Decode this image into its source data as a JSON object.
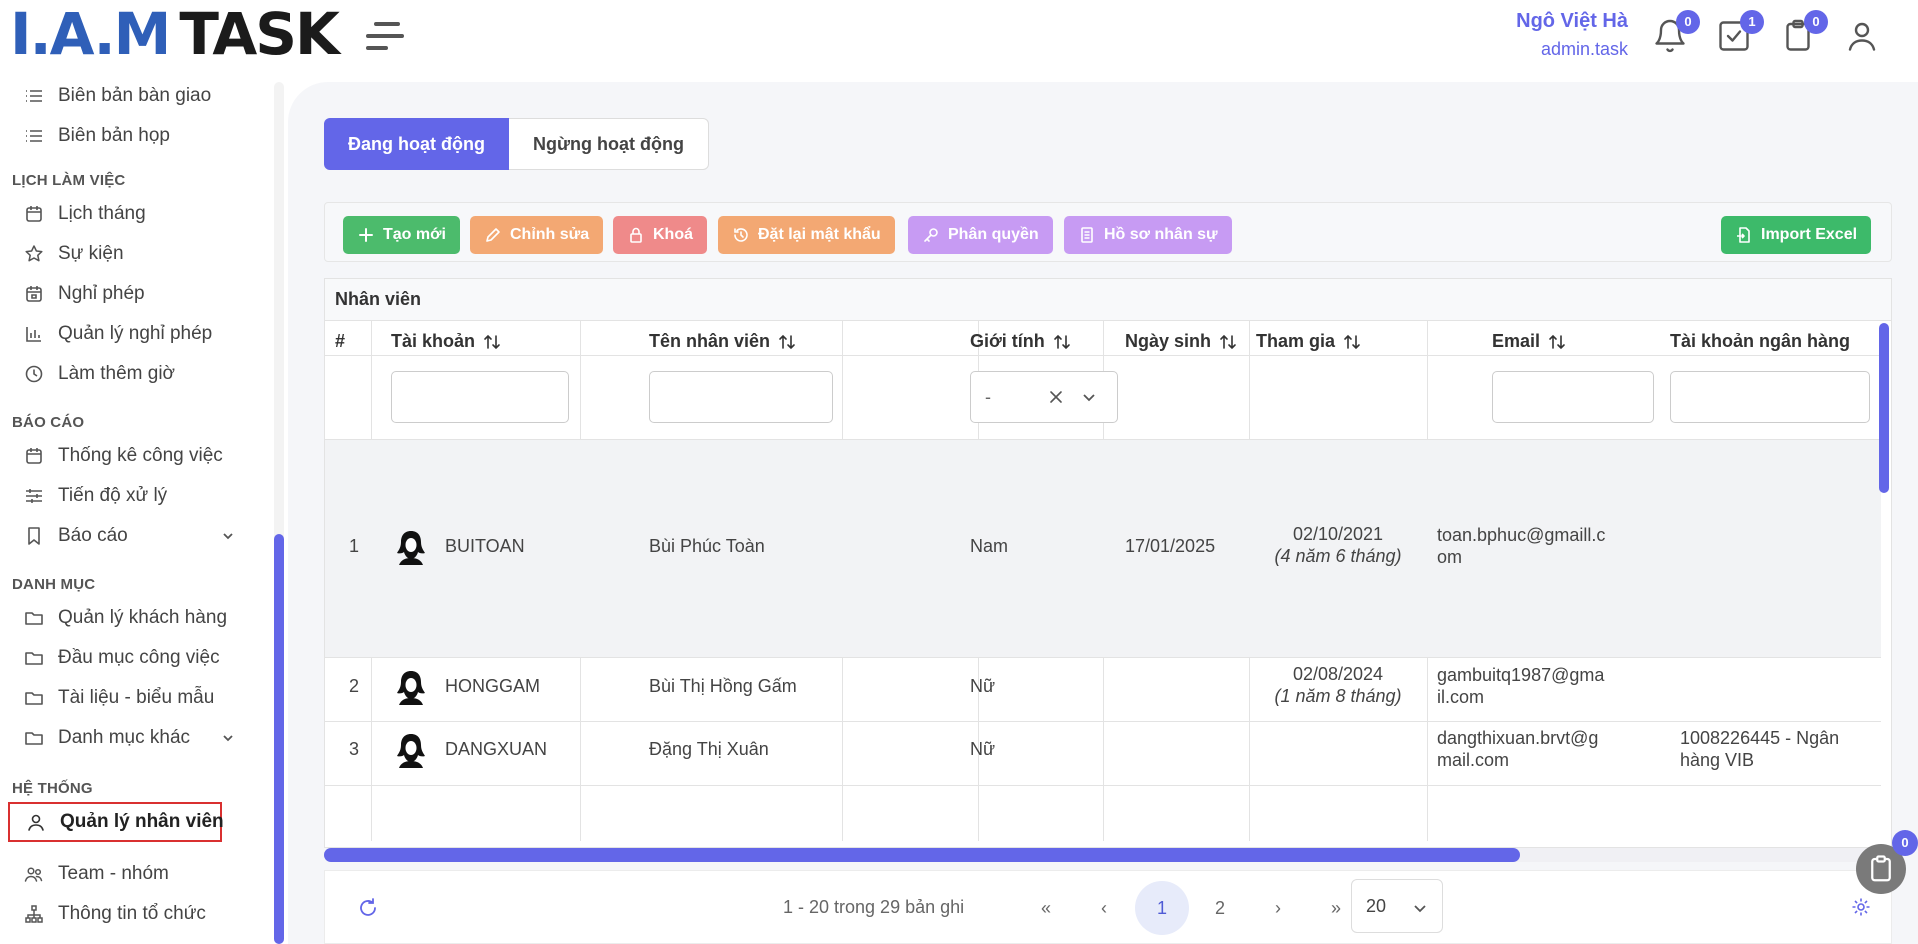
{
  "brand": {
    "logo_part1": "I.A.M",
    "logo_part2": "TASK"
  },
  "header": {
    "user_name": "Ngô Việt Hà",
    "user_role": "admin.task",
    "badges": {
      "notifications": "0",
      "tasks": "1",
      "clipboard": "0"
    }
  },
  "sidebar": {
    "top_items": [
      "Biên bản bàn giao",
      "Biên bản họp"
    ],
    "sections": [
      {
        "title": "LỊCH LÀM VIỆC",
        "items": [
          "Lịch tháng",
          "Sự kiện",
          "Nghỉ phép",
          "Quản lý nghỉ phép",
          "Làm thêm giờ"
        ]
      },
      {
        "title": "BÁO CÁO",
        "items": [
          "Thống kê công việc",
          "Tiến độ xử lý",
          "Báo cáo"
        ]
      },
      {
        "title": "DANH MỤC",
        "items": [
          "Quản lý khách hàng",
          "Đầu mục công việc",
          "Tài liệu - biểu mẫu",
          "Danh mục khác"
        ]
      },
      {
        "title": "HỆ THỐNG",
        "items": [
          "Quản lý nhân viên",
          "Team - nhóm",
          "Thông tin tổ chức"
        ]
      }
    ]
  },
  "tabs": {
    "active": "Đang hoạt động",
    "inactive": "Ngừng hoạt động"
  },
  "toolbar": {
    "create": "Tạo mới",
    "edit": "Chỉnh sửa",
    "lock": "Khoá",
    "reset_password": "Đặt lại mật khẩu",
    "permissions": "Phân quyền",
    "hr_profile": "Hồ sơ nhân sự",
    "import_excel": "Import Excel"
  },
  "colors": {
    "primary": "#6366e8",
    "create": "#4cbb6c",
    "edit": "#f3a873",
    "lock": "#ef8a8a",
    "reset": "#f3a873",
    "permissions": "#c79bf3",
    "hr_profile": "#c79bf3",
    "import": "#3dba6a"
  },
  "table": {
    "caption": "Nhân viên",
    "columns": [
      "#",
      "Tài khoản",
      "Tên nhân viên",
      "Giới tính",
      "Ngày sinh",
      "Tham gia",
      "Email",
      "Tài khoản ngân hàng"
    ],
    "gender_filter_value": "-",
    "rows": [
      {
        "no": "1",
        "account": "BUITOAN",
        "name": "Bùi Phúc Toàn",
        "gender": "Nam",
        "dob": "17/01/2025",
        "joined": "02/10/2021",
        "joined_note": "(4 năm 6 tháng)",
        "email": "toan.bphuc@gmaill.com",
        "bank": ""
      },
      {
        "no": "2",
        "account": "HONGGAM",
        "name": "Bùi Thị Hồng Gấm",
        "gender": "Nữ",
        "dob": "",
        "joined": "02/08/2024",
        "joined_note": "(1 năm 8 tháng)",
        "email": "gambuitq1987@gmail.com",
        "bank": ""
      },
      {
        "no": "3",
        "account": "DANGXUAN",
        "name": "Đặng Thị Xuân",
        "gender": "Nữ",
        "dob": "",
        "joined": "",
        "joined_note": "",
        "email": "dangthixuan.brvt@gmail.com",
        "bank": "1008226445 - Ngân hàng VIB"
      }
    ]
  },
  "pagination": {
    "summary": "1 - 20 trong 29 bản ghi",
    "first": "«",
    "prev": "‹",
    "pages": [
      "1",
      "2"
    ],
    "current": "1",
    "next": "›",
    "last": "»",
    "page_size": "20"
  },
  "floating": {
    "clipboard_badge": "0"
  }
}
